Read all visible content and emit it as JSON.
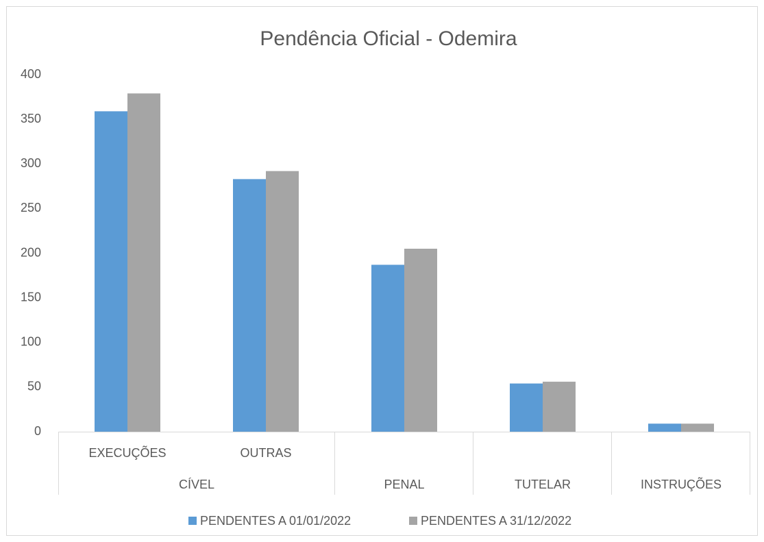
{
  "chart_data": {
    "type": "bar",
    "title": "Pendência Oficial - Odemira",
    "categories": [
      "EXECUÇÕES",
      "OUTRAS",
      null,
      null,
      null
    ],
    "category_groups": [
      "CÍVEL",
      "CÍVEL",
      "PENAL",
      "TUTELAR",
      "INSTRUÇÕES"
    ],
    "series": [
      {
        "name": "PENDENTES A 01/01/2022",
        "color": "#5b9bd5",
        "values": [
          359,
          283,
          187,
          54,
          9
        ]
      },
      {
        "name": "PENDENTES A 31/12/2022",
        "color": "#a5a5a5",
        "values": [
          379,
          292,
          205,
          56,
          9
        ]
      }
    ],
    "ylim": [
      0,
      400
    ],
    "yticks": [
      0,
      50,
      100,
      150,
      200,
      250,
      300,
      350,
      400
    ],
    "grid": false,
    "legend": "bottom"
  }
}
